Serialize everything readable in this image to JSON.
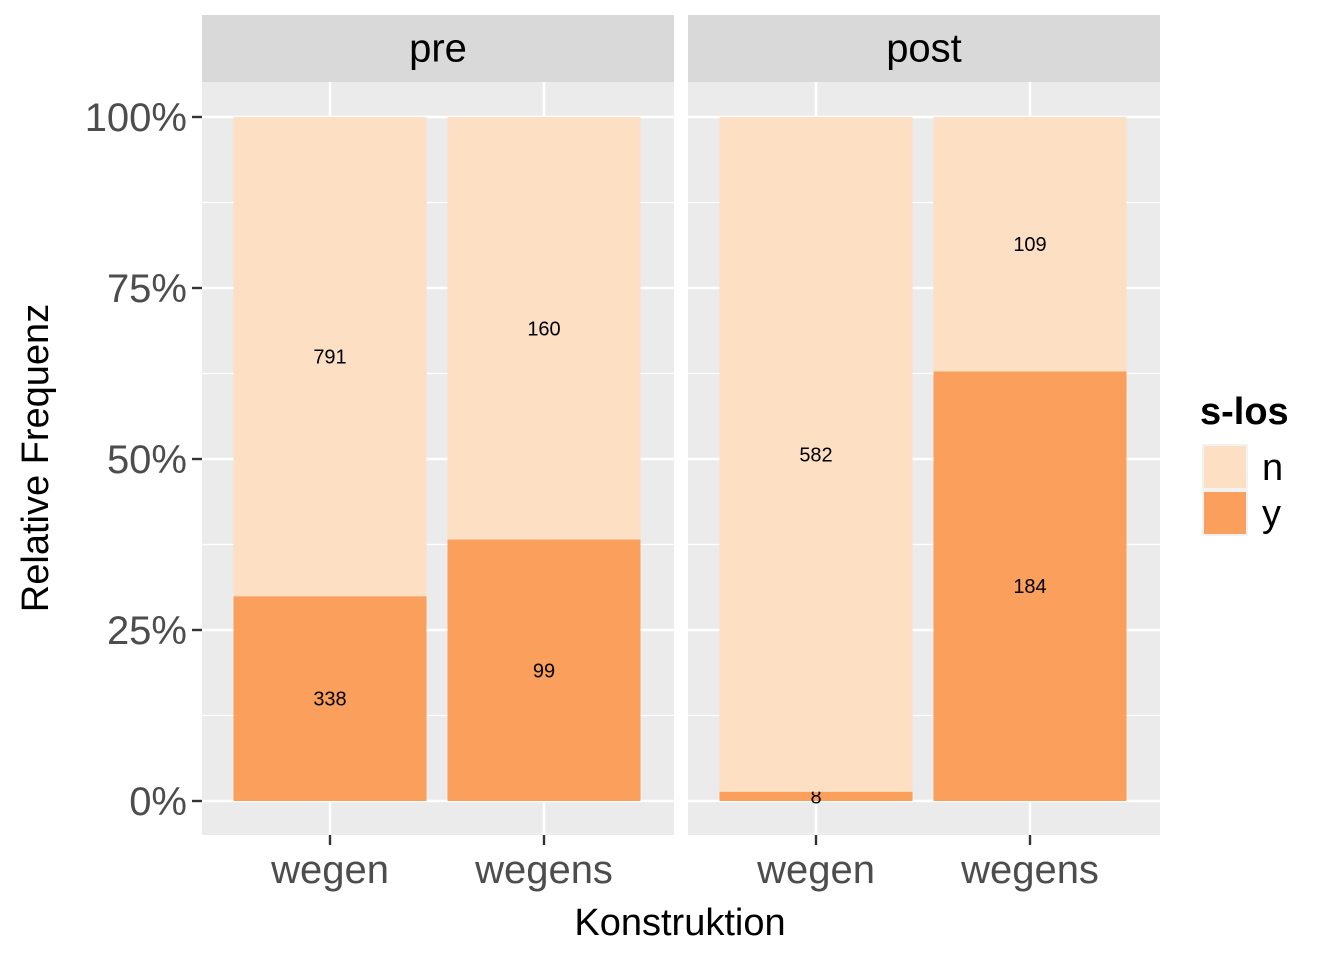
{
  "chart_data": {
    "type": "bar",
    "stacked": true,
    "percent": true,
    "facets": [
      "pre",
      "post"
    ],
    "categories": [
      "wegen",
      "wegens"
    ],
    "series": [
      {
        "name": "n",
        "color": "#FDDFC3",
        "counts": {
          "pre": [
            791,
            160
          ],
          "post": [
            582,
            109
          ]
        }
      },
      {
        "name": "y",
        "color": "#FA9F5C",
        "counts": {
          "pre": [
            338,
            99
          ],
          "post": [
            8,
            184
          ]
        }
      }
    ],
    "xlabel": "Konstruktion",
    "ylabel": "Relative Frequenz",
    "yticks": [
      "0%",
      "25%",
      "50%",
      "75%",
      "100%"
    ],
    "ylim": [
      0,
      1
    ],
    "legend_title": "s-los",
    "legend_position": "right",
    "grid": true
  }
}
